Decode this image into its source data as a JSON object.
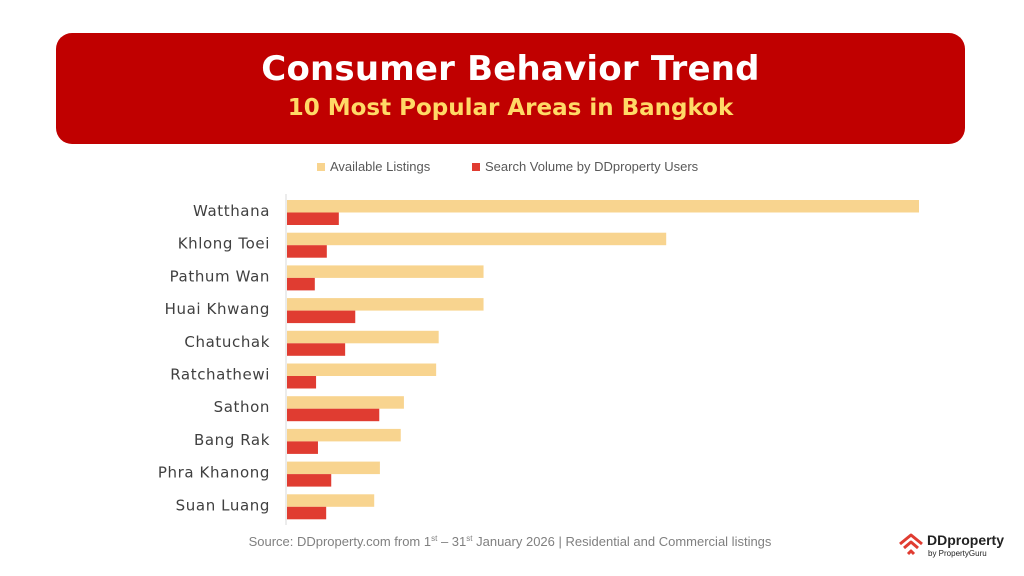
{
  "header": {
    "title": "Consumer Behavior Trend",
    "subtitle": "10 Most Popular Areas in Bangkok"
  },
  "colors": {
    "banner": "#c00000",
    "subtitle": "#ffd966",
    "available": "#f8d48f",
    "search": "#e03c31",
    "logo": "#e03c31"
  },
  "chart_data": {
    "type": "bar",
    "orientation": "horizontal",
    "title": "",
    "xlabel": "",
    "ylabel": "",
    "grid": false,
    "legend_position": "top-center",
    "categories": [
      "Watthana",
      "Khlong Toei",
      "Pathum Wan",
      "Huai Khwang",
      "Chatuchak",
      "Ratchathewi",
      "Sathon",
      "Bang Rak",
      "Phra Khanong",
      "Suan Luang"
    ],
    "series": [
      {
        "name": "Available Listings",
        "color": "#f8d48f",
        "values": [
          100,
          60,
          31.1,
          31.1,
          24,
          23.6,
          18.5,
          18,
          14.7,
          13.8
        ]
      },
      {
        "name": "Search Volume by DDproperty Users",
        "color": "#e03c31",
        "values": [
          8.2,
          6.3,
          4.4,
          10.8,
          9.2,
          4.6,
          14.6,
          4.9,
          7,
          6.2
        ]
      }
    ],
    "xlim": [
      0,
      100
    ]
  },
  "footer": {
    "source_prefix": "Source: DDproperty.com from 1",
    "source_sup1": "st",
    "source_mid": "  – 31",
    "source_sup2": "st",
    "source_suffix": " January 2026 | Residential and Commercial listings"
  },
  "logo": {
    "icon": "ddproperty-house-logo",
    "name": "DDproperty",
    "tagline": "by PropertyGuru"
  }
}
